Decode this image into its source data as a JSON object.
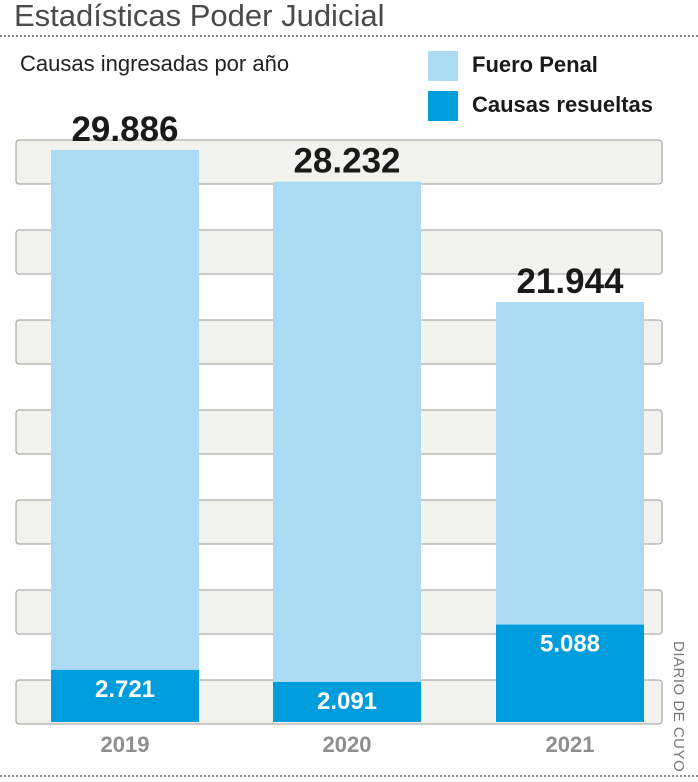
{
  "title": "Estadísticas Poder Judicial",
  "colors": {
    "fuero_penal": "#aadbf3",
    "causas_resueltas": "#009ddc",
    "band": "#f2f2ee",
    "band_border": "#9a9a9a",
    "total_label": "#1a1a1a",
    "inner_label": "#ffffff",
    "year_label": "#8e8e8e"
  },
  "source": "DIARIO DE CUYO",
  "chart_data": {
    "type": "bar",
    "title": "Estadísticas Poder Judicial",
    "subtitle": "Causas ingresadas por año",
    "categories": [
      "2019",
      "2020",
      "2021"
    ],
    "series": [
      {
        "name": "Fuero Penal",
        "values": [
          29886,
          28232,
          21944
        ],
        "value_labels": [
          "29.886",
          "28.232",
          "21.944"
        ]
      },
      {
        "name": "Causas resueltas",
        "values": [
          2721,
          2091,
          5088
        ],
        "value_labels": [
          "2.721",
          "2.091",
          "5.088"
        ]
      }
    ],
    "layout": "overlapped",
    "ylim": [
      0,
      32000
    ],
    "grid": true,
    "legend": "top-right"
  }
}
